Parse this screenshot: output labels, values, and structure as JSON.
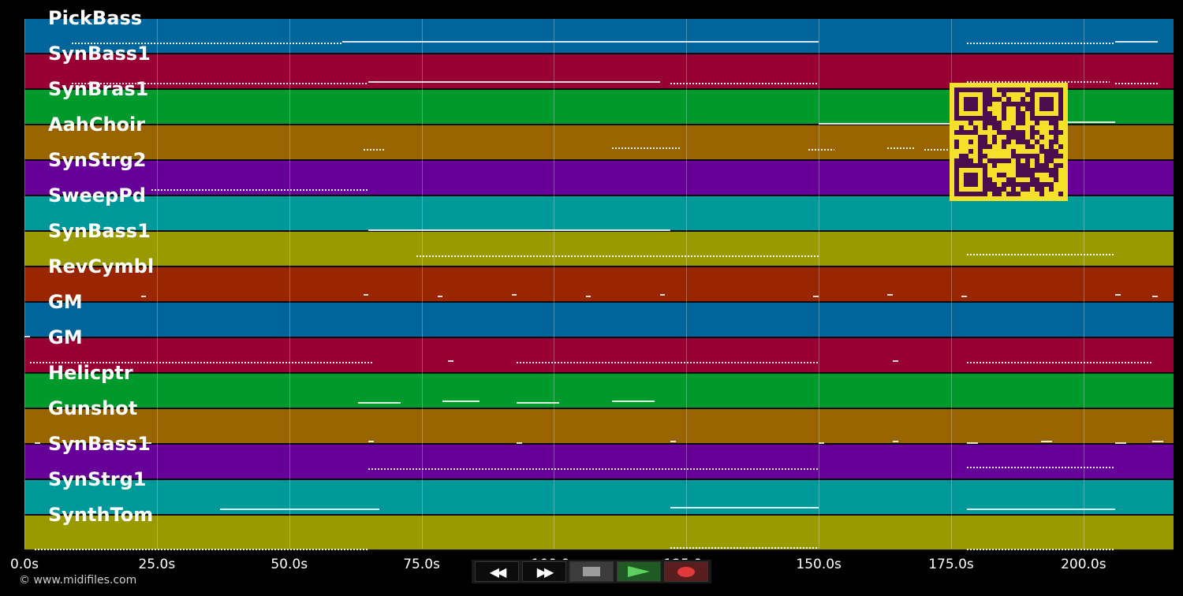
{
  "colors": {
    "background": "#000000",
    "note": "#ffffff",
    "qr_fg": "#4a0e4e",
    "qr_bg": "#f5e02a"
  },
  "axis": {
    "min_seconds": 0,
    "max_seconds": 217,
    "ticks": [
      {
        "value": 0,
        "label": "0.0s"
      },
      {
        "value": 25,
        "label": "25.0s"
      },
      {
        "value": 50,
        "label": "50.0s"
      },
      {
        "value": 75,
        "label": "75.0s"
      },
      {
        "value": 100,
        "label": "100.0s"
      },
      {
        "value": 125,
        "label": "125.0s"
      },
      {
        "value": 150,
        "label": "150.0s"
      },
      {
        "value": 175,
        "label": "175.0s"
      },
      {
        "value": 200,
        "label": "200.0s"
      }
    ]
  },
  "tracks": [
    {
      "name": "PickBass",
      "color": "#00659a",
      "notes": [
        [
          9,
          60,
          "dotted"
        ],
        [
          60,
          150,
          "solid"
        ],
        [
          178,
          206,
          "dotted"
        ],
        [
          206,
          214,
          "solid"
        ]
      ]
    },
    {
      "name": "SynBass1",
      "color": "#980033",
      "notes": [
        [
          9,
          65,
          "dotted"
        ],
        [
          65,
          120,
          "solid"
        ],
        [
          122,
          150,
          "dotted"
        ],
        [
          178,
          205,
          "dotted"
        ],
        [
          206,
          214,
          "dotted"
        ]
      ]
    },
    {
      "name": "SynBras1",
      "color": "#00992b",
      "notes": [
        [
          150,
          178,
          "solid"
        ],
        [
          197,
          206,
          "solid"
        ]
      ]
    },
    {
      "name": "AahChoir",
      "color": "#996500",
      "notes": [
        [
          64,
          68,
          "dotted"
        ],
        [
          111,
          124,
          "dotted"
        ],
        [
          148,
          153,
          "dotted"
        ],
        [
          163,
          168,
          "dotted"
        ],
        [
          170,
          176,
          "dotted"
        ]
      ]
    },
    {
      "name": "SynStrg2",
      "color": "#660099",
      "notes": [
        [
          24,
          65,
          "dotted"
        ]
      ]
    },
    {
      "name": "SweepPd",
      "color": "#009999",
      "notes": [
        [
          65,
          122,
          "solid"
        ]
      ]
    },
    {
      "name": "SynBass1",
      "color": "#999900",
      "notes": [
        [
          74,
          150,
          "dotted"
        ],
        [
          178,
          206,
          "dotted"
        ]
      ]
    },
    {
      "name": "RevCymbl",
      "color": "#992600",
      "notes": [
        [
          22,
          23,
          "dash"
        ],
        [
          64,
          65,
          "dash"
        ],
        [
          78,
          79,
          "dash"
        ],
        [
          92,
          93,
          "dash"
        ],
        [
          106,
          107,
          "dash"
        ],
        [
          120,
          121,
          "dash"
        ],
        [
          149,
          150,
          "dash"
        ],
        [
          163,
          164,
          "dash"
        ],
        [
          177,
          178,
          "dash"
        ],
        [
          206,
          207,
          "dash"
        ],
        [
          213,
          214,
          "dash"
        ]
      ]
    },
    {
      "name": "GM",
      "color": "#00659a",
      "notes": [
        [
          0,
          1,
          "dash"
        ]
      ]
    },
    {
      "name": "GM",
      "color": "#980033",
      "notes": [
        [
          1,
          66,
          "dotted"
        ],
        [
          80,
          81,
          "dash"
        ],
        [
          93,
          150,
          "dotted"
        ],
        [
          164,
          165,
          "dash"
        ],
        [
          178,
          213,
          "dotted"
        ]
      ]
    },
    {
      "name": "Helicptr",
      "color": "#00992b",
      "notes": [
        [
          63,
          71,
          "solid"
        ],
        [
          79,
          86,
          "solid"
        ],
        [
          93,
          101,
          "solid"
        ],
        [
          111,
          119,
          "solid"
        ]
      ]
    },
    {
      "name": "Gunshot",
      "color": "#996500",
      "notes": [
        [
          2,
          3,
          "dash"
        ],
        [
          9,
          10,
          "dash"
        ],
        [
          23,
          24,
          "dash"
        ],
        [
          65,
          66,
          "dash"
        ],
        [
          93,
          94,
          "dash"
        ],
        [
          122,
          123,
          "dash"
        ],
        [
          150,
          151,
          "dash"
        ],
        [
          164,
          165,
          "dash"
        ],
        [
          178,
          180,
          "dash"
        ],
        [
          192,
          194,
          "dash"
        ],
        [
          206,
          208,
          "dash"
        ],
        [
          213,
          215,
          "dash"
        ]
      ]
    },
    {
      "name": "SynBass1",
      "color": "#660099",
      "notes": [
        [
          65,
          150,
          "dotted"
        ],
        [
          178,
          206,
          "dotted"
        ]
      ]
    },
    {
      "name": "SynStrg1",
      "color": "#009999",
      "notes": [
        [
          37,
          67,
          "solid"
        ],
        [
          122,
          150,
          "solid"
        ],
        [
          178,
          206,
          "solid"
        ]
      ]
    },
    {
      "name": "SynthTom",
      "color": "#999900",
      "notes": [
        [
          2,
          65,
          "dotted"
        ],
        [
          122,
          150,
          "dotted"
        ],
        [
          178,
          206,
          "dotted"
        ]
      ]
    }
  ],
  "transport": {
    "rewind_symbol": "◀◀",
    "forward_symbol": "▶▶"
  },
  "copyright": "© www.midifiles.com"
}
